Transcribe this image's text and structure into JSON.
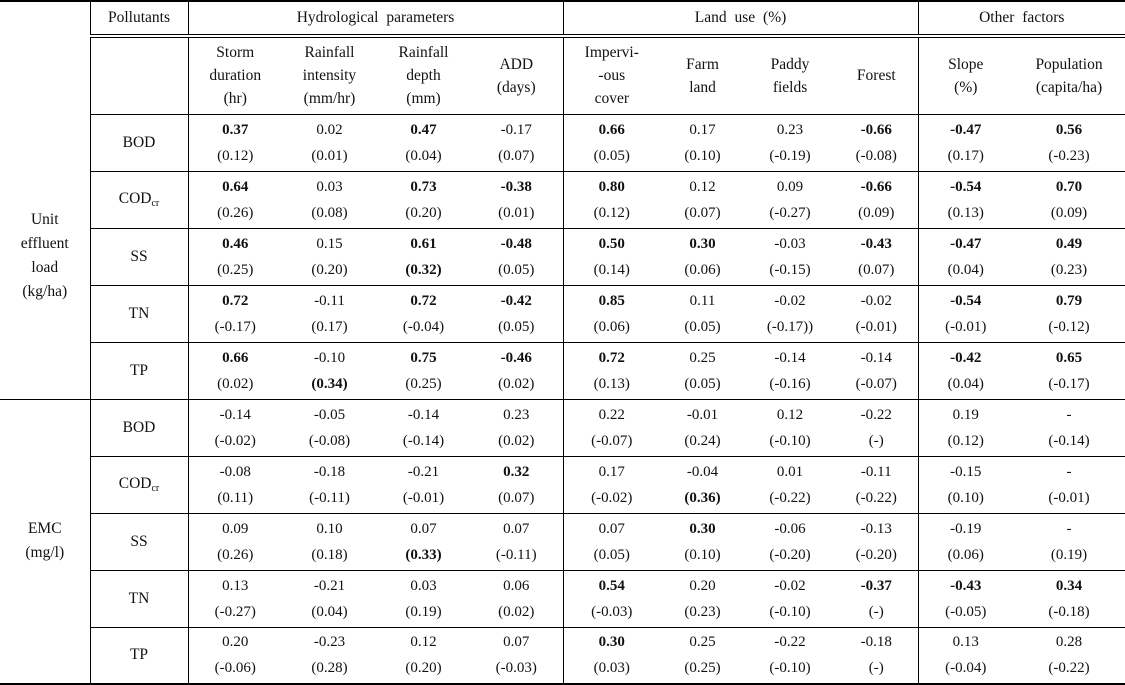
{
  "table": {
    "header": {
      "pollutants": "Pollutants",
      "hydrological": "Hydrological parameters",
      "land_use": "Land use (%)",
      "other_factors": "Other factors"
    },
    "sub_headers": [
      "Storm\nduration\n(hr)",
      "Rainfall\nintensity\n(mm/hr)",
      "Rainfall\ndepth\n(mm)",
      "ADD\n(days)",
      "Impervi-\n-ous\ncover",
      "Farm\nland",
      "Paddy\nfields",
      "Forest",
      "Slope\n(%)",
      "Population\n(capita/ha)"
    ],
    "cell_note": "each cell = [value, value_bold_flag, parenthetical, parenthetical_bold_flag]",
    "groups": [
      {
        "label": "Unit\neffluent\nload\n(kg/ha)",
        "rows": [
          {
            "pollutant": "BOD",
            "sub": "",
            "cells": [
              [
                "0.37",
                1,
                "(0.12)",
                0
              ],
              [
                "0.02",
                0,
                "(0.01)",
                0
              ],
              [
                "0.47",
                1,
                "(0.04)",
                0
              ],
              [
                "-0.17",
                0,
                "(0.07)",
                0
              ],
              [
                "0.66",
                1,
                "(0.05)",
                0
              ],
              [
                "0.17",
                0,
                "(0.10)",
                0
              ],
              [
                "0.23",
                0,
                "(-0.19)",
                0
              ],
              [
                "-0.66",
                1,
                "(-0.08)",
                0
              ],
              [
                "-0.47",
                1,
                "(0.17)",
                0
              ],
              [
                "0.56",
                1,
                "(-0.23)",
                0
              ]
            ]
          },
          {
            "pollutant": "COD",
            "sub": "cr",
            "cells": [
              [
                "0.64",
                1,
                "(0.26)",
                0
              ],
              [
                "0.03",
                0,
                "(0.08)",
                0
              ],
              [
                "0.73",
                1,
                "(0.20)",
                0
              ],
              [
                "-0.38",
                1,
                "(0.01)",
                0
              ],
              [
                "0.80",
                1,
                "(0.12)",
                0
              ],
              [
                "0.12",
                0,
                "(0.07)",
                0
              ],
              [
                "0.09",
                0,
                "(-0.27)",
                0
              ],
              [
                "-0.66",
                1,
                "(0.09)",
                0
              ],
              [
                "-0.54",
                1,
                "(0.13)",
                0
              ],
              [
                "0.70",
                1,
                "(0.09)",
                0
              ]
            ]
          },
          {
            "pollutant": "SS",
            "sub": "",
            "cells": [
              [
                "0.46",
                1,
                "(0.25)",
                0
              ],
              [
                "0.15",
                0,
                "(0.20)",
                0
              ],
              [
                "0.61",
                1,
                "(0.32)",
                1
              ],
              [
                "-0.48",
                1,
                "(0.05)",
                0
              ],
              [
                "0.50",
                1,
                "(0.14)",
                0
              ],
              [
                "0.30",
                1,
                "(0.06)",
                0
              ],
              [
                "-0.03",
                0,
                "(-0.15)",
                0
              ],
              [
                "-0.43",
                1,
                "(0.07)",
                0
              ],
              [
                "-0.47",
                1,
                "(0.04)",
                0
              ],
              [
                "0.49",
                1,
                "(0.23)",
                0
              ]
            ]
          },
          {
            "pollutant": "TN",
            "sub": "",
            "cells": [
              [
                "0.72",
                1,
                "(-0.17)",
                0
              ],
              [
                "-0.11",
                0,
                "(0.17)",
                0
              ],
              [
                "0.72",
                1,
                "(-0.04)",
                0
              ],
              [
                "-0.42",
                1,
                "(0.05)",
                0
              ],
              [
                "0.85",
                1,
                "(0.06)",
                0
              ],
              [
                "0.11",
                0,
                "(0.05)",
                0
              ],
              [
                "-0.02",
                0,
                "(-0.17))",
                0
              ],
              [
                "-0.02",
                0,
                "(-0.01)",
                0
              ],
              [
                "-0.54",
                1,
                "(-0.01)",
                0
              ],
              [
                "0.79",
                1,
                "(-0.12)",
                0
              ]
            ]
          },
          {
            "pollutant": "TP",
            "sub": "",
            "cells": [
              [
                "0.66",
                1,
                "(0.02)",
                0
              ],
              [
                "-0.10",
                0,
                "(0.34)",
                1
              ],
              [
                "0.75",
                1,
                "(0.25)",
                0
              ],
              [
                "-0.46",
                1,
                "(0.02)",
                0
              ],
              [
                "0.72",
                1,
                "(0.13)",
                0
              ],
              [
                "0.25",
                0,
                "(0.05)",
                0
              ],
              [
                "-0.14",
                0,
                "(-0.16)",
                0
              ],
              [
                "-0.14",
                0,
                "(-0.07)",
                0
              ],
              [
                "-0.42",
                1,
                "(0.04)",
                0
              ],
              [
                "0.65",
                1,
                "(-0.17)",
                0
              ]
            ]
          }
        ]
      },
      {
        "label": "EMC\n(mg/l)",
        "rows": [
          {
            "pollutant": "BOD",
            "sub": "",
            "cells": [
              [
                "-0.14",
                0,
                "(-0.02)",
                0
              ],
              [
                "-0.05",
                0,
                "(-0.08)",
                0
              ],
              [
                "-0.14",
                0,
                "(-0.14)",
                0
              ],
              [
                "0.23",
                0,
                "(0.02)",
                0
              ],
              [
                "0.22",
                0,
                "(-0.07)",
                0
              ],
              [
                "-0.01",
                0,
                "(0.24)",
                0
              ],
              [
                "0.12",
                0,
                "(-0.10)",
                0
              ],
              [
                "-0.22",
                0,
                "(-)",
                0
              ],
              [
                "0.19",
                0,
                "(0.12)",
                0
              ],
              [
                "-",
                0,
                "(-0.14)",
                0
              ]
            ]
          },
          {
            "pollutant": "COD",
            "sub": "cr",
            "cells": [
              [
                "-0.08",
                0,
                "(0.11)",
                0
              ],
              [
                "-0.18",
                0,
                "(-0.11)",
                0
              ],
              [
                "-0.21",
                0,
                "(-0.01)",
                0
              ],
              [
                "0.32",
                1,
                "(0.07)",
                0
              ],
              [
                "0.17",
                0,
                "(-0.02)",
                0
              ],
              [
                "-0.04",
                0,
                "(0.36)",
                1
              ],
              [
                "0.01",
                0,
                "(-0.22)",
                0
              ],
              [
                "-0.11",
                0,
                "(-0.22)",
                0
              ],
              [
                "-0.15",
                0,
                "(0.10)",
                0
              ],
              [
                "-",
                0,
                "(-0.01)",
                0
              ]
            ]
          },
          {
            "pollutant": "SS",
            "sub": "",
            "cells": [
              [
                "0.09",
                0,
                "(0.26)",
                0
              ],
              [
                "0.10",
                0,
                "(0.18)",
                0
              ],
              [
                "0.07",
                0,
                "(0.33)",
                1
              ],
              [
                "0.07",
                0,
                "(-0.11)",
                0
              ],
              [
                "0.07",
                0,
                "(0.05)",
                0
              ],
              [
                "0.30",
                1,
                "(0.10)",
                0
              ],
              [
                "-0.06",
                0,
                "(-0.20)",
                0
              ],
              [
                "-0.13",
                0,
                "(-0.20)",
                0
              ],
              [
                "-0.19",
                0,
                "(0.06)",
                0
              ],
              [
                "-",
                0,
                "(0.19)",
                0
              ]
            ]
          },
          {
            "pollutant": "TN",
            "sub": "",
            "cells": [
              [
                "0.13",
                0,
                "(-0.27)",
                0
              ],
              [
                "-0.21",
                0,
                "(0.04)",
                0
              ],
              [
                "0.03",
                0,
                "(0.19)",
                0
              ],
              [
                "0.06",
                0,
                "(0.02)",
                0
              ],
              [
                "0.54",
                1,
                "(-0.03)",
                0
              ],
              [
                "0.20",
                0,
                "(0.23)",
                0
              ],
              [
                "-0.02",
                0,
                "(-0.10)",
                0
              ],
              [
                "-0.37",
                1,
                "(-)",
                0
              ],
              [
                "-0.43",
                1,
                "(-0.05)",
                0
              ],
              [
                "0.34",
                1,
                "(-0.18)",
                0
              ]
            ]
          },
          {
            "pollutant": "TP",
            "sub": "",
            "cells": [
              [
                "0.20",
                0,
                "(-0.06)",
                0
              ],
              [
                "-0.23",
                0,
                "(0.28)",
                0
              ],
              [
                "0.12",
                0,
                "(0.20)",
                0
              ],
              [
                "0.07",
                0,
                "(-0.03)",
                0
              ],
              [
                "0.30",
                1,
                "(0.03)",
                0
              ],
              [
                "0.25",
                0,
                "(0.25)",
                0
              ],
              [
                "-0.22",
                0,
                "(-0.10)",
                0
              ],
              [
                "-0.18",
                0,
                "(-)",
                0
              ],
              [
                "0.13",
                0,
                "(-0.04)",
                0
              ],
              [
                "0.28",
                0,
                "(-0.22)",
                0
              ]
            ]
          }
        ]
      }
    ]
  }
}
